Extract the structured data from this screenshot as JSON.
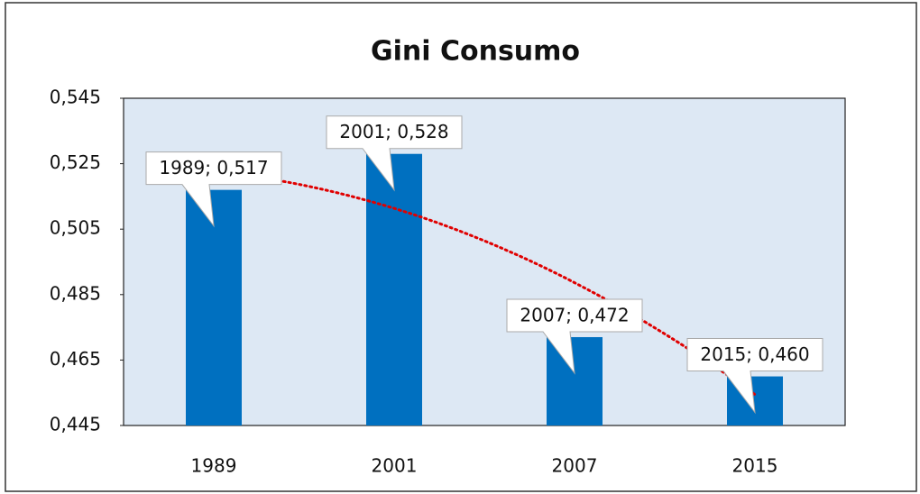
{
  "chart_data": {
    "type": "bar",
    "title": "Gini Consumo",
    "categories": [
      "1989",
      "2001",
      "2007",
      "2015"
    ],
    "values": [
      0.517,
      0.528,
      0.472,
      0.46
    ],
    "value_labels": [
      "1989; 0,517",
      "2001; 0,528",
      "2007; 0,472",
      "2015; 0,460"
    ],
    "color": "#0070c0",
    "ylim": [
      0.445,
      0.545
    ],
    "yticks": [
      {
        "value": 0.445,
        "label": "0,445"
      },
      {
        "value": 0.465,
        "label": "0,465"
      },
      {
        "value": 0.485,
        "label": "0,485"
      },
      {
        "value": 0.505,
        "label": "0,505"
      },
      {
        "value": 0.525,
        "label": "0,525"
      },
      {
        "value": 0.545,
        "label": "0,545"
      }
    ],
    "grid": false,
    "trendline": {
      "type": "polynomial",
      "color": "#e00000"
    }
  }
}
